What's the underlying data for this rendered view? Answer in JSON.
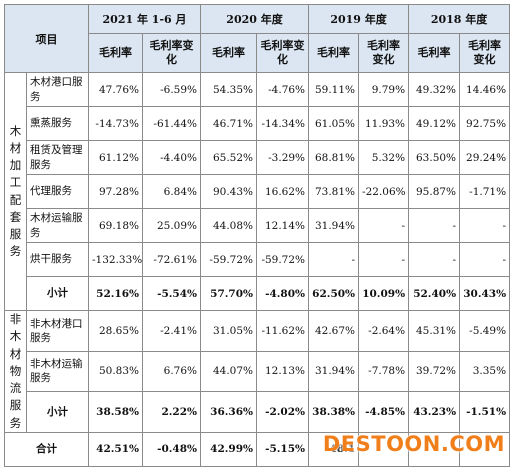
{
  "table": {
    "item_header": "项目",
    "periods": [
      "2021 年 1-6 月",
      "2020 年度",
      "2019 年度",
      "2018 年度"
    ],
    "col_gross_margin": "毛利率",
    "col_change": "毛利率变化",
    "col_change_short": "毛利率变化",
    "groups": [
      {
        "name": "木材加工配套服务",
        "rows": [
          {
            "item": "木材港口服务",
            "values": [
              "47.76%",
              "-6.59%",
              "54.35%",
              "-4.76%",
              "59.11%",
              "9.79%",
              "49.32%",
              "14.46%"
            ]
          },
          {
            "item": "熏蒸服务",
            "values": [
              "-14.73%",
              "-61.44%",
              "46.71%",
              "-14.34%",
              "61.05%",
              "11.93%",
              "49.12%",
              "92.75%"
            ]
          },
          {
            "item": "租赁及管理服务",
            "values": [
              "61.12%",
              "-4.40%",
              "65.52%",
              "-3.29%",
              "68.81%",
              "5.32%",
              "63.50%",
              "29.24%"
            ]
          },
          {
            "item": "代理服务",
            "values": [
              "97.28%",
              "6.84%",
              "90.43%",
              "16.62%",
              "73.81%",
              "-22.06%",
              "95.87%",
              "-1.71%"
            ]
          },
          {
            "item": "木材运输服务",
            "values": [
              "69.18%",
              "25.09%",
              "44.08%",
              "12.14%",
              "31.94%",
              "-",
              "-",
              "-"
            ]
          },
          {
            "item": "烘干服务",
            "values": [
              "-132.33%",
              "-72.61%",
              "-59.72%",
              "-59.72%",
              "-",
              "-",
              "-",
              "-"
            ]
          }
        ],
        "subtotal": {
          "item": "小计",
          "values": [
            "52.16%",
            "-5.54%",
            "57.70%",
            "-4.80%",
            "62.50%",
            "10.09%",
            "52.40%",
            "30.43%"
          ]
        }
      },
      {
        "name": "非木材物流服务",
        "rows": [
          {
            "item": "非木材港口服务",
            "values": [
              "28.65%",
              "-2.41%",
              "31.05%",
              "-11.62%",
              "42.67%",
              "-2.64%",
              "45.31%",
              "-5.49%"
            ]
          },
          {
            "item": "非木材运输服务",
            "values": [
              "50.83%",
              "6.76%",
              "44.07%",
              "12.13%",
              "31.94%",
              "-7.78%",
              "39.72%",
              "3.35%"
            ]
          }
        ],
        "subtotal": {
          "item": "小计",
          "values": [
            "38.58%",
            "2.22%",
            "36.36%",
            "-2.02%",
            "38.38%",
            "-4.85%",
            "43.23%",
            "-1.51%"
          ]
        }
      }
    ],
    "total": {
      "item": "合计",
      "values": [
        "42.51%",
        "-0.48%",
        "42.99%",
        "-5.15%",
        "48.1",
        "",
        "",
        ""
      ]
    }
  },
  "watermark": "DESTOON.COM"
}
